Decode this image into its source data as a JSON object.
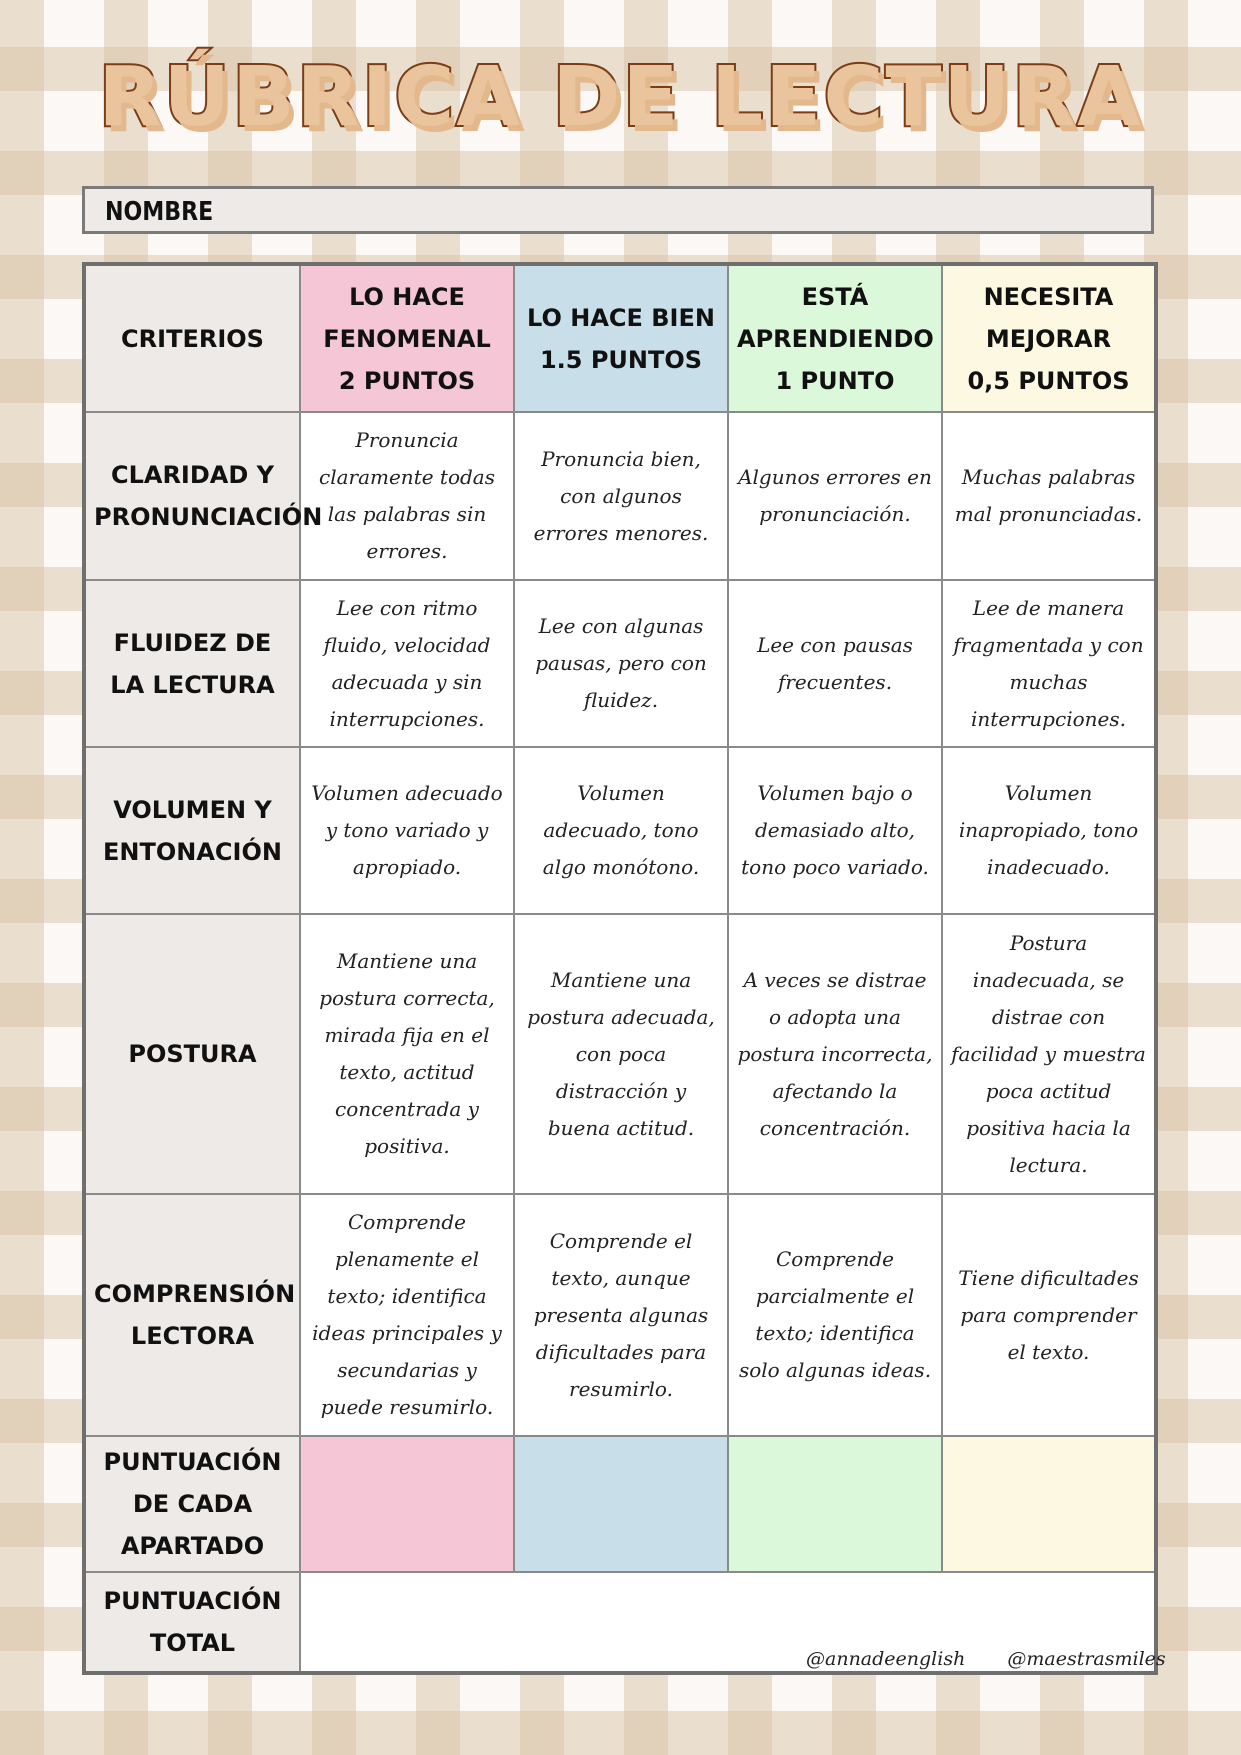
{
  "title": "RÚBRICA DE LECTURA",
  "name_label": "NOMBRE",
  "colors": {
    "pink": "#f4c6d6",
    "blue": "#c8dfea",
    "green": "#dcf8db",
    "yellow": "#fdf8e1",
    "title_stroke": "#7a3d16",
    "title_fill": "#e9c49c"
  },
  "table": {
    "header": {
      "criteria": "CRITERIOS",
      "levels": [
        {
          "line1": "LO HACE",
          "line2": "FENOMENAL",
          "line3": "2 PUNTOS"
        },
        {
          "line1": "LO HACE BIEN",
          "line2": "1.5 PUNTOS",
          "line3": ""
        },
        {
          "line1": "ESTÁ",
          "line2": "APRENDIENDO",
          "line3": "1 PUNTO"
        },
        {
          "line1": "NECESITA",
          "line2": "MEJORAR",
          "line3": "0,5 PUNTOS"
        }
      ]
    },
    "rows": [
      {
        "criterion": "CLARIDAD Y PRONUNCIACIÓN",
        "cells": [
          "Pronuncia claramente todas las palabras sin errores.",
          "Pronuncia bien, con algunos errores menores.",
          "Algunos errores en pronunciación.",
          "Muchas palabras mal pronunciadas."
        ]
      },
      {
        "criterion": "FLUIDEZ DE LA LECTURA",
        "cells": [
          "Lee con ritmo fluido, velocidad adecuada y sin interrupciones.",
          "Lee con algunas pausas, pero con fluidez.",
          "Lee con pausas frecuentes.",
          "Lee de manera fragmentada y con muchas interrupciones."
        ]
      },
      {
        "criterion": "VOLUMEN Y ENTONACIÓN",
        "cells": [
          "Volumen adecuado y tono variado y apropiado.",
          "Volumen adecuado, tono algo monótono.",
          "Volumen bajo o demasiado alto, tono poco variado.",
          "Volumen inapropiado, tono inadecuado."
        ]
      },
      {
        "criterion": "POSTURA",
        "cells": [
          "Mantiene una postura correcta, mirada fija en el texto, actitud concentrada y positiva.",
          "Mantiene una postura adecuada, con poca distracción y buena actitud.",
          "A veces se distrae o adopta una postura incorrecta, afectando la concentración.",
          "Postura inadecuada, se distrae con facilidad y muestra poca actitud positiva hacia la lectura."
        ]
      },
      {
        "criterion": "COMPRENSIÓN LECTORA",
        "cells": [
          "Comprende plenamente el texto; identifica ideas principales y secundarias y puede resumirlo.",
          "Comprende el texto, aunque presenta algunas dificultades para resumirlo.",
          "Comprende parcialmente el texto; identifica solo algunas ideas.",
          "Tiene dificultades para comprender el texto."
        ]
      }
    ],
    "section_score": "PUNTUACIÓN DE CADA APARTADO",
    "total_score": "PUNTUACIÓN TOTAL"
  },
  "handles": [
    "@annadeenglish",
    "@maestrasmiles"
  ]
}
